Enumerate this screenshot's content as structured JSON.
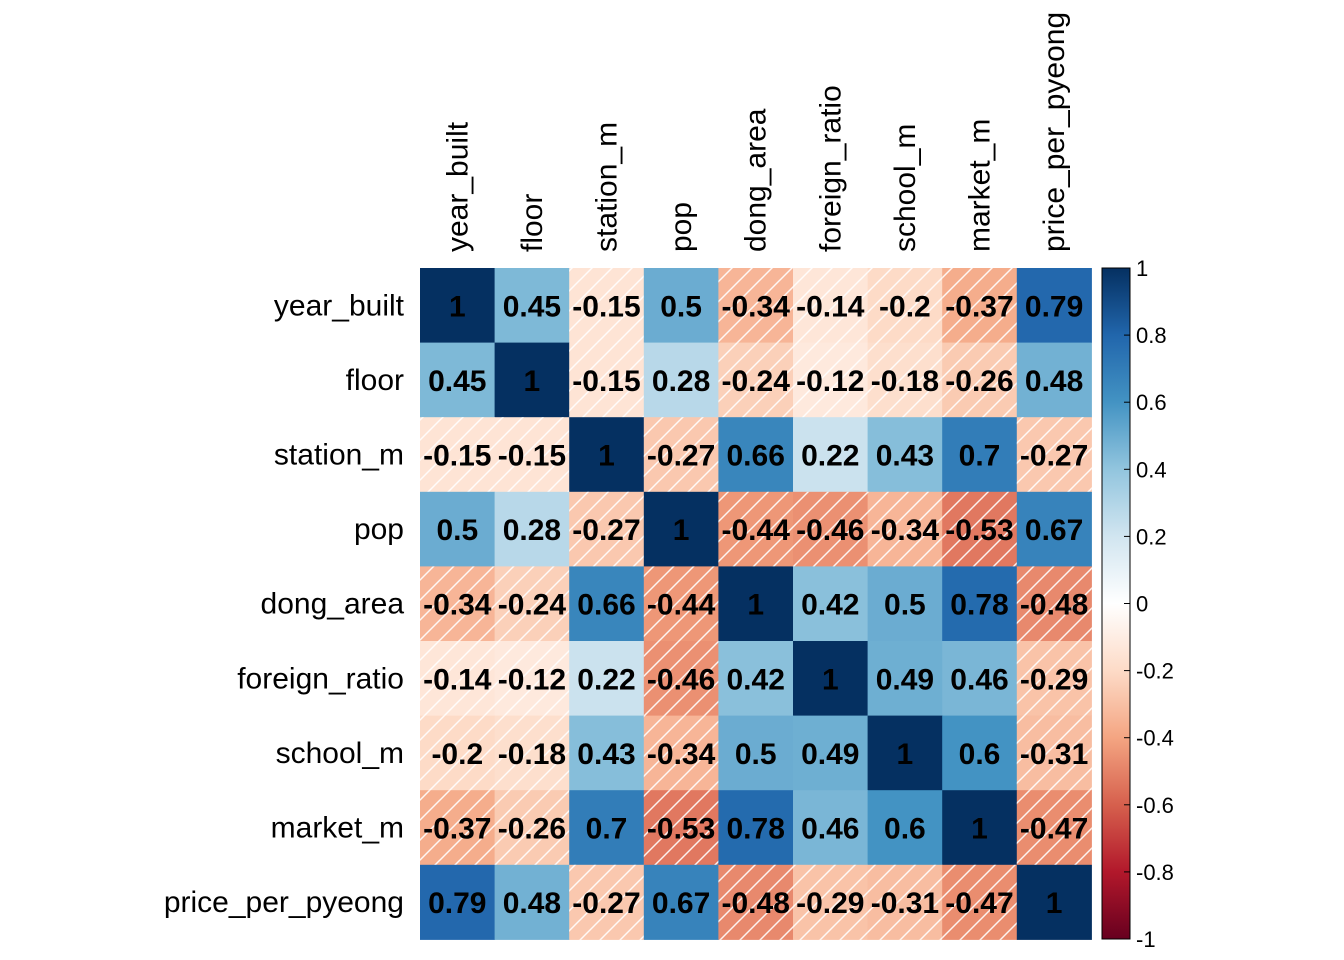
{
  "chart_data": {
    "type": "heatmap",
    "title": "",
    "variables": [
      "year_built",
      "floor",
      "station_m",
      "pop",
      "dong_area",
      "foreign_ratio",
      "school_m",
      "market_m",
      "price_per_pyeong"
    ],
    "matrix": [
      [
        1,
        0.45,
        -0.15,
        0.5,
        -0.34,
        -0.14,
        -0.2,
        -0.37,
        0.79
      ],
      [
        0.45,
        1,
        -0.15,
        0.28,
        -0.24,
        -0.12,
        -0.18,
        -0.26,
        0.48
      ],
      [
        -0.15,
        -0.15,
        1,
        -0.27,
        0.66,
        0.22,
        0.43,
        0.7,
        -0.27
      ],
      [
        0.5,
        0.28,
        -0.27,
        1,
        -0.44,
        -0.46,
        -0.34,
        -0.53,
        0.67
      ],
      [
        -0.34,
        -0.24,
        0.66,
        -0.44,
        1,
        0.42,
        0.5,
        0.78,
        -0.48
      ],
      [
        -0.14,
        -0.12,
        0.22,
        -0.46,
        0.42,
        1,
        0.49,
        0.46,
        -0.29
      ],
      [
        -0.2,
        -0.18,
        0.43,
        -0.34,
        0.5,
        0.49,
        1,
        0.6,
        -0.31
      ],
      [
        -0.37,
        -0.26,
        0.7,
        -0.53,
        0.78,
        0.46,
        0.6,
        1,
        -0.47
      ],
      [
        0.79,
        0.48,
        -0.27,
        0.67,
        -0.48,
        -0.29,
        -0.31,
        -0.47,
        1
      ]
    ],
    "cell_labels": [
      [
        "1",
        "0.45",
        "-0.15",
        "0.5",
        "-0.34",
        "-0.14",
        "-0.2",
        "-0.37",
        "0.79"
      ],
      [
        "0.45",
        "1",
        "-0.15",
        "0.28",
        "-0.24",
        "-0.12",
        "-0.18",
        "-0.26",
        "0.48"
      ],
      [
        "-0.15",
        "-0.15",
        "1",
        "-0.27",
        "0.66",
        "0.22",
        "0.43",
        "0.7",
        "-0.27"
      ],
      [
        "0.5",
        "0.28",
        "-0.27",
        "1",
        "-0.44",
        "-0.46",
        "-0.34",
        "-0.53",
        "0.67"
      ],
      [
        "-0.34",
        "-0.24",
        "0.66",
        "-0.44",
        "1",
        "0.42",
        "0.5",
        "0.78",
        "-0.48"
      ],
      [
        "-0.14",
        "-0.12",
        "0.22",
        "-0.46",
        "0.42",
        "1",
        "0.49",
        "0.46",
        "-0.29"
      ],
      [
        "-0.2",
        "-0.18",
        "0.43",
        "-0.34",
        "0.5",
        "0.49",
        "1",
        "0.6",
        "-0.31"
      ],
      [
        "-0.37",
        "-0.26",
        "0.7",
        "-0.53",
        "0.78",
        "0.46",
        "0.6",
        "1",
        "-0.47"
      ],
      [
        "0.79",
        "0.48",
        "-0.27",
        "0.67",
        "-0.48",
        "-0.29",
        "-0.31",
        "-0.47",
        "1"
      ]
    ],
    "color_scale": {
      "range": [
        -1,
        1
      ],
      "ticks": [
        "1",
        "0.8",
        "0.6",
        "0.4",
        "0.2",
        "0",
        "-0.2",
        "-0.4",
        "-0.6",
        "-0.8",
        "-1"
      ],
      "tick_values": [
        1,
        0.8,
        0.6,
        0.4,
        0.2,
        0,
        -0.2,
        -0.4,
        -0.6,
        -0.8,
        -1
      ],
      "palette": [
        "#67001F",
        "#B2182B",
        "#D6604D",
        "#F4A582",
        "#FDDBC7",
        "#FFFFFF",
        "#D1E5F0",
        "#92C5DE",
        "#4393C3",
        "#2166AC",
        "#053061"
      ]
    },
    "negative_cells_hatched": true,
    "hatch_color": "#ffffff",
    "legend_position": "right"
  }
}
